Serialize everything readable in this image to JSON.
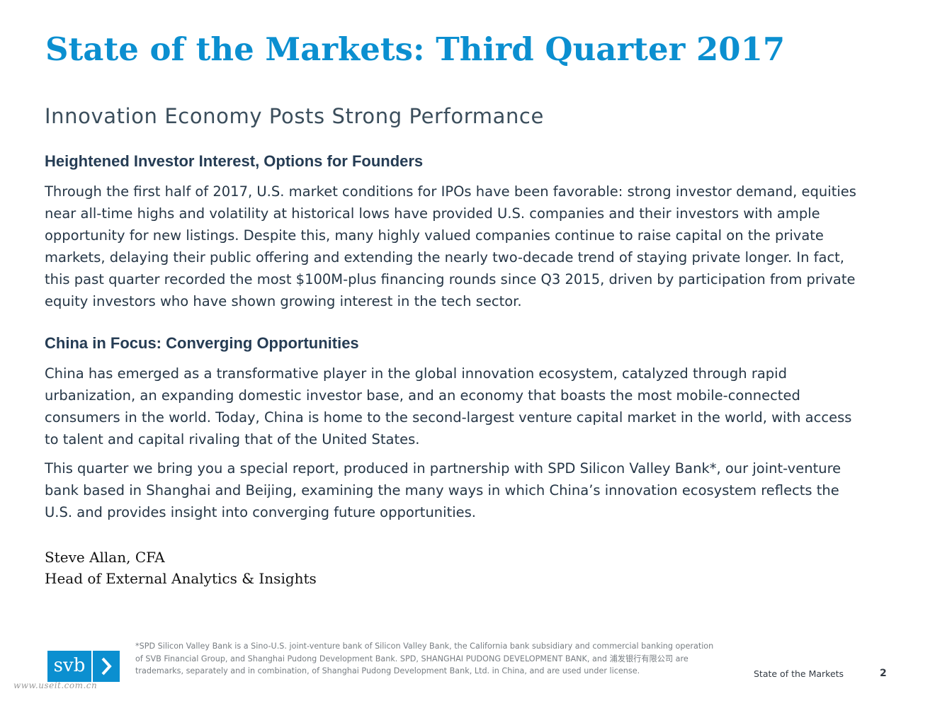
{
  "page": {
    "title": "State of the Markets: Third Quarter 2017",
    "subtitle": "Innovation Economy Posts Strong Performance"
  },
  "sections": [
    {
      "heading": "Heightened Investor Interest, Options for Founders",
      "paragraphs": [
        "Through the first half of 2017, U.S. market conditions for IPOs have been favorable: strong investor demand, equities near all-time highs and volatility at historical lows have provided U.S. companies and their investors with ample opportunity for new listings. Despite this, many highly valued companies continue to raise capital on the private markets, delaying their public offering and extending the nearly two-decade trend of staying private longer. In fact, this past quarter recorded the most $100M-plus financing rounds since Q3 2015, driven by participation from private equity investors who have shown growing interest in the tech sector."
      ]
    },
    {
      "heading": "China in Focus: Converging Opportunities",
      "paragraphs": [
        "China has emerged as a transformative player in the global innovation ecosystem, catalyzed through rapid urbanization, an expanding domestic investor base, and an economy that boasts the most mobile-connected consumers in the world. Today, China is home to the second-largest venture capital market in the world, with access to talent and capital rivaling that of the United States.",
        "This quarter we bring you a special report, produced in partnership with SPD Silicon Valley Bank*, our joint-venture bank based in Shanghai and Beijing, examining the many ways in which China’s innovation ecosystem reflects the U.S. and provides insight into converging future opportunities."
      ]
    }
  ],
  "signature": {
    "name": "Steve Allan, CFA",
    "role": "Head of External Analytics & Insights"
  },
  "footer": {
    "logo_text": "svb",
    "footnote": "*SPD Silicon Valley Bank is a Sino-U.S. joint-venture bank of Silicon Valley Bank, the California bank subsidiary and commercial banking operation of SVB Financial Group, and Shanghai Pudong Development Bank. SPD, SHANGHAI PUDONG DEVELOPMENT BANK, and 浦发银行有限公司 are trademarks, separately and in combination, of Shanghai Pudong Development Bank, Ltd. in China, and are used under license.",
    "label": "State of the Markets",
    "page_number": "2"
  },
  "watermark": "www.useit.com.cn",
  "colors": {
    "brand_blue": "#0b8fd0",
    "heading_navy": "#253c54",
    "body_text": "#253646"
  }
}
